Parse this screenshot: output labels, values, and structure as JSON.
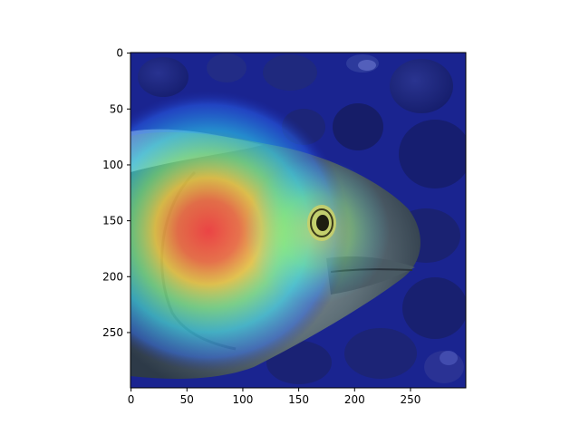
{
  "figure": {
    "image_subject": "fish-head-heatmap-overlay",
    "x_ticks": [
      "0",
      "50",
      "100",
      "150",
      "200",
      "250"
    ],
    "y_ticks": [
      "0",
      "50",
      "100",
      "150",
      "200",
      "250"
    ],
    "x_tick_values": [
      0,
      50,
      100,
      150,
      200,
      250
    ],
    "y_tick_values": [
      0,
      50,
      100,
      150,
      200,
      250
    ],
    "x_range": [
      0,
      299
    ],
    "y_range": [
      0,
      299
    ],
    "colormap": "jet"
  }
}
